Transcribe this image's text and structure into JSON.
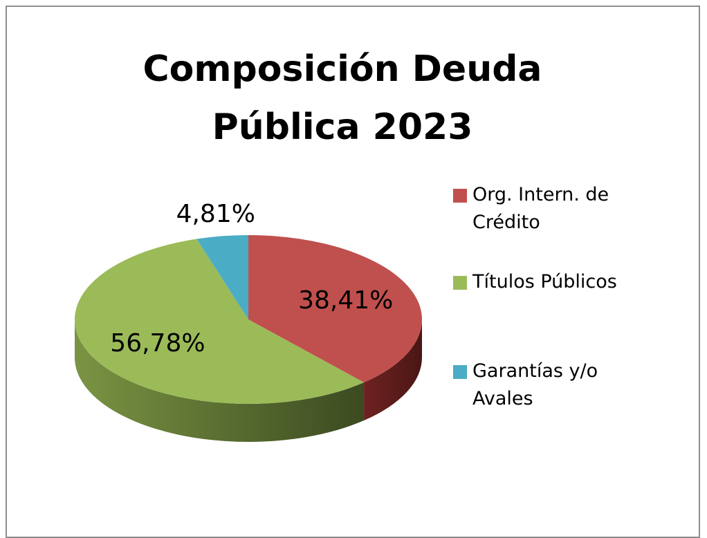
{
  "chart_data": {
    "type": "pie3d",
    "title": "Composición Deuda Pública 2023",
    "categories": [
      "Org. Intern. de Crédito",
      "Títulos Públicos",
      "Garantías y/o Avales"
    ],
    "values": [
      38.41,
      56.78,
      4.81
    ],
    "value_labels": [
      "38,41%",
      "56,78%",
      "4,81%"
    ],
    "colors": [
      "#c0504d",
      "#9bbb59",
      "#4bacc6"
    ],
    "legend": "right"
  }
}
